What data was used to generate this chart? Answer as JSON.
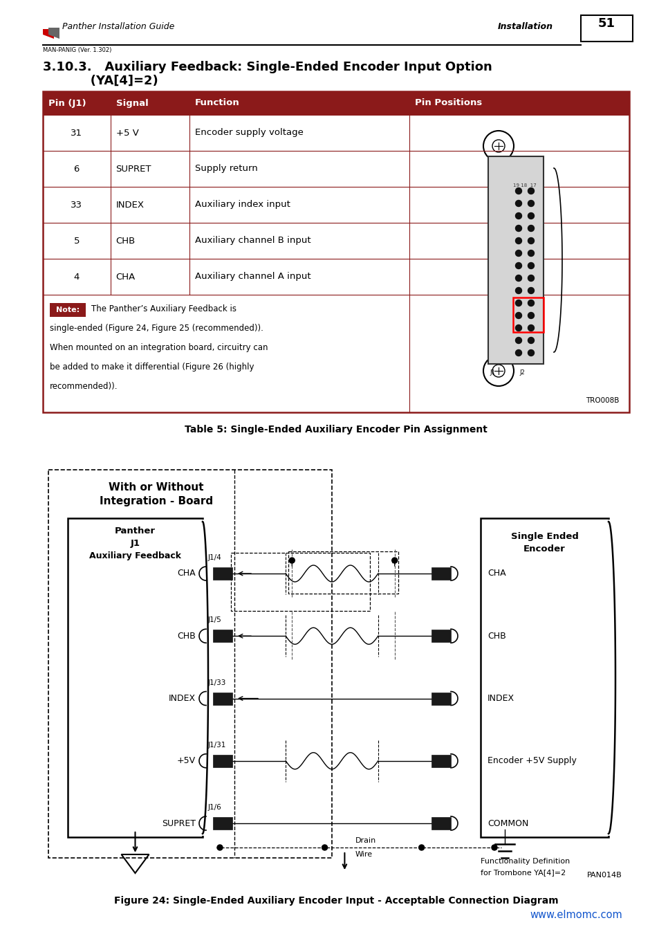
{
  "page_width": 9.54,
  "page_height": 13.5,
  "bg_color": "#ffffff",
  "header": {
    "logo_text": "Panther Installation Guide",
    "right_text": "Installation",
    "page_num": "51",
    "sub_text": "MAN-PANIG (Ver. 1.302)"
  },
  "section_title_line1": "3.10.3.   Auxiliary Feedback: Single-Ended Encoder Input Option",
  "section_title_line2": "           (YA[4]=2)",
  "table_header_color": "#8B1A1A",
  "table_header_text_color": "#ffffff",
  "table_columns": [
    "Pin (J1)",
    "Signal",
    "Function",
    "Pin Positions"
  ],
  "table_rows": [
    [
      "31",
      "+5 V",
      "Encoder supply voltage"
    ],
    [
      "6",
      "SUPRET",
      "Supply return"
    ],
    [
      "33",
      "INDEX",
      "Auxiliary index input"
    ],
    [
      "5",
      "CHB",
      "Auxiliary channel B input"
    ],
    [
      "4",
      "CHA",
      "Auxiliary channel A input"
    ]
  ],
  "note_label": "Note:",
  "note_text": "The Panther’s Auxiliary Feedback is\nsingle-ended (Figure 24, Figure 25 (recommended)).\nWhen mounted on an integration board, circuitry can\nbe added to make it differential (Figure 26 (highly\nrecommended)).",
  "tro_label": "TRO008B",
  "table_caption": "Table 5: Single-Ended Auxiliary Encoder Pin Assignment",
  "figure_caption": "Figure 24: Single-Ended Auxiliary Encoder Input - Acceptable Connection Diagram",
  "pan_label": "PAN014B",
  "footer_url": "www.elmomc.com",
  "signal_labels_l": [
    "CHA",
    "CHB",
    "INDEX",
    "+5V",
    "SUPRET"
  ],
  "signal_labels_r": [
    "CHA",
    "CHB",
    "INDEX",
    "Encoder +5V Supply",
    "COMMON"
  ],
  "pin_labels": [
    "J1/4",
    "J1/5",
    "J1/33",
    "J1/31",
    "J1/6"
  ],
  "with_or_without": [
    "With or Without",
    "Integration - Board"
  ],
  "panther_header": [
    "Panther",
    "J1",
    "Auxiliary Feedback"
  ],
  "encoder_header": [
    "Single Ended",
    "Encoder"
  ],
  "func_def": [
    "Functionality Definition",
    "for Trombone YA[4]=2"
  ]
}
